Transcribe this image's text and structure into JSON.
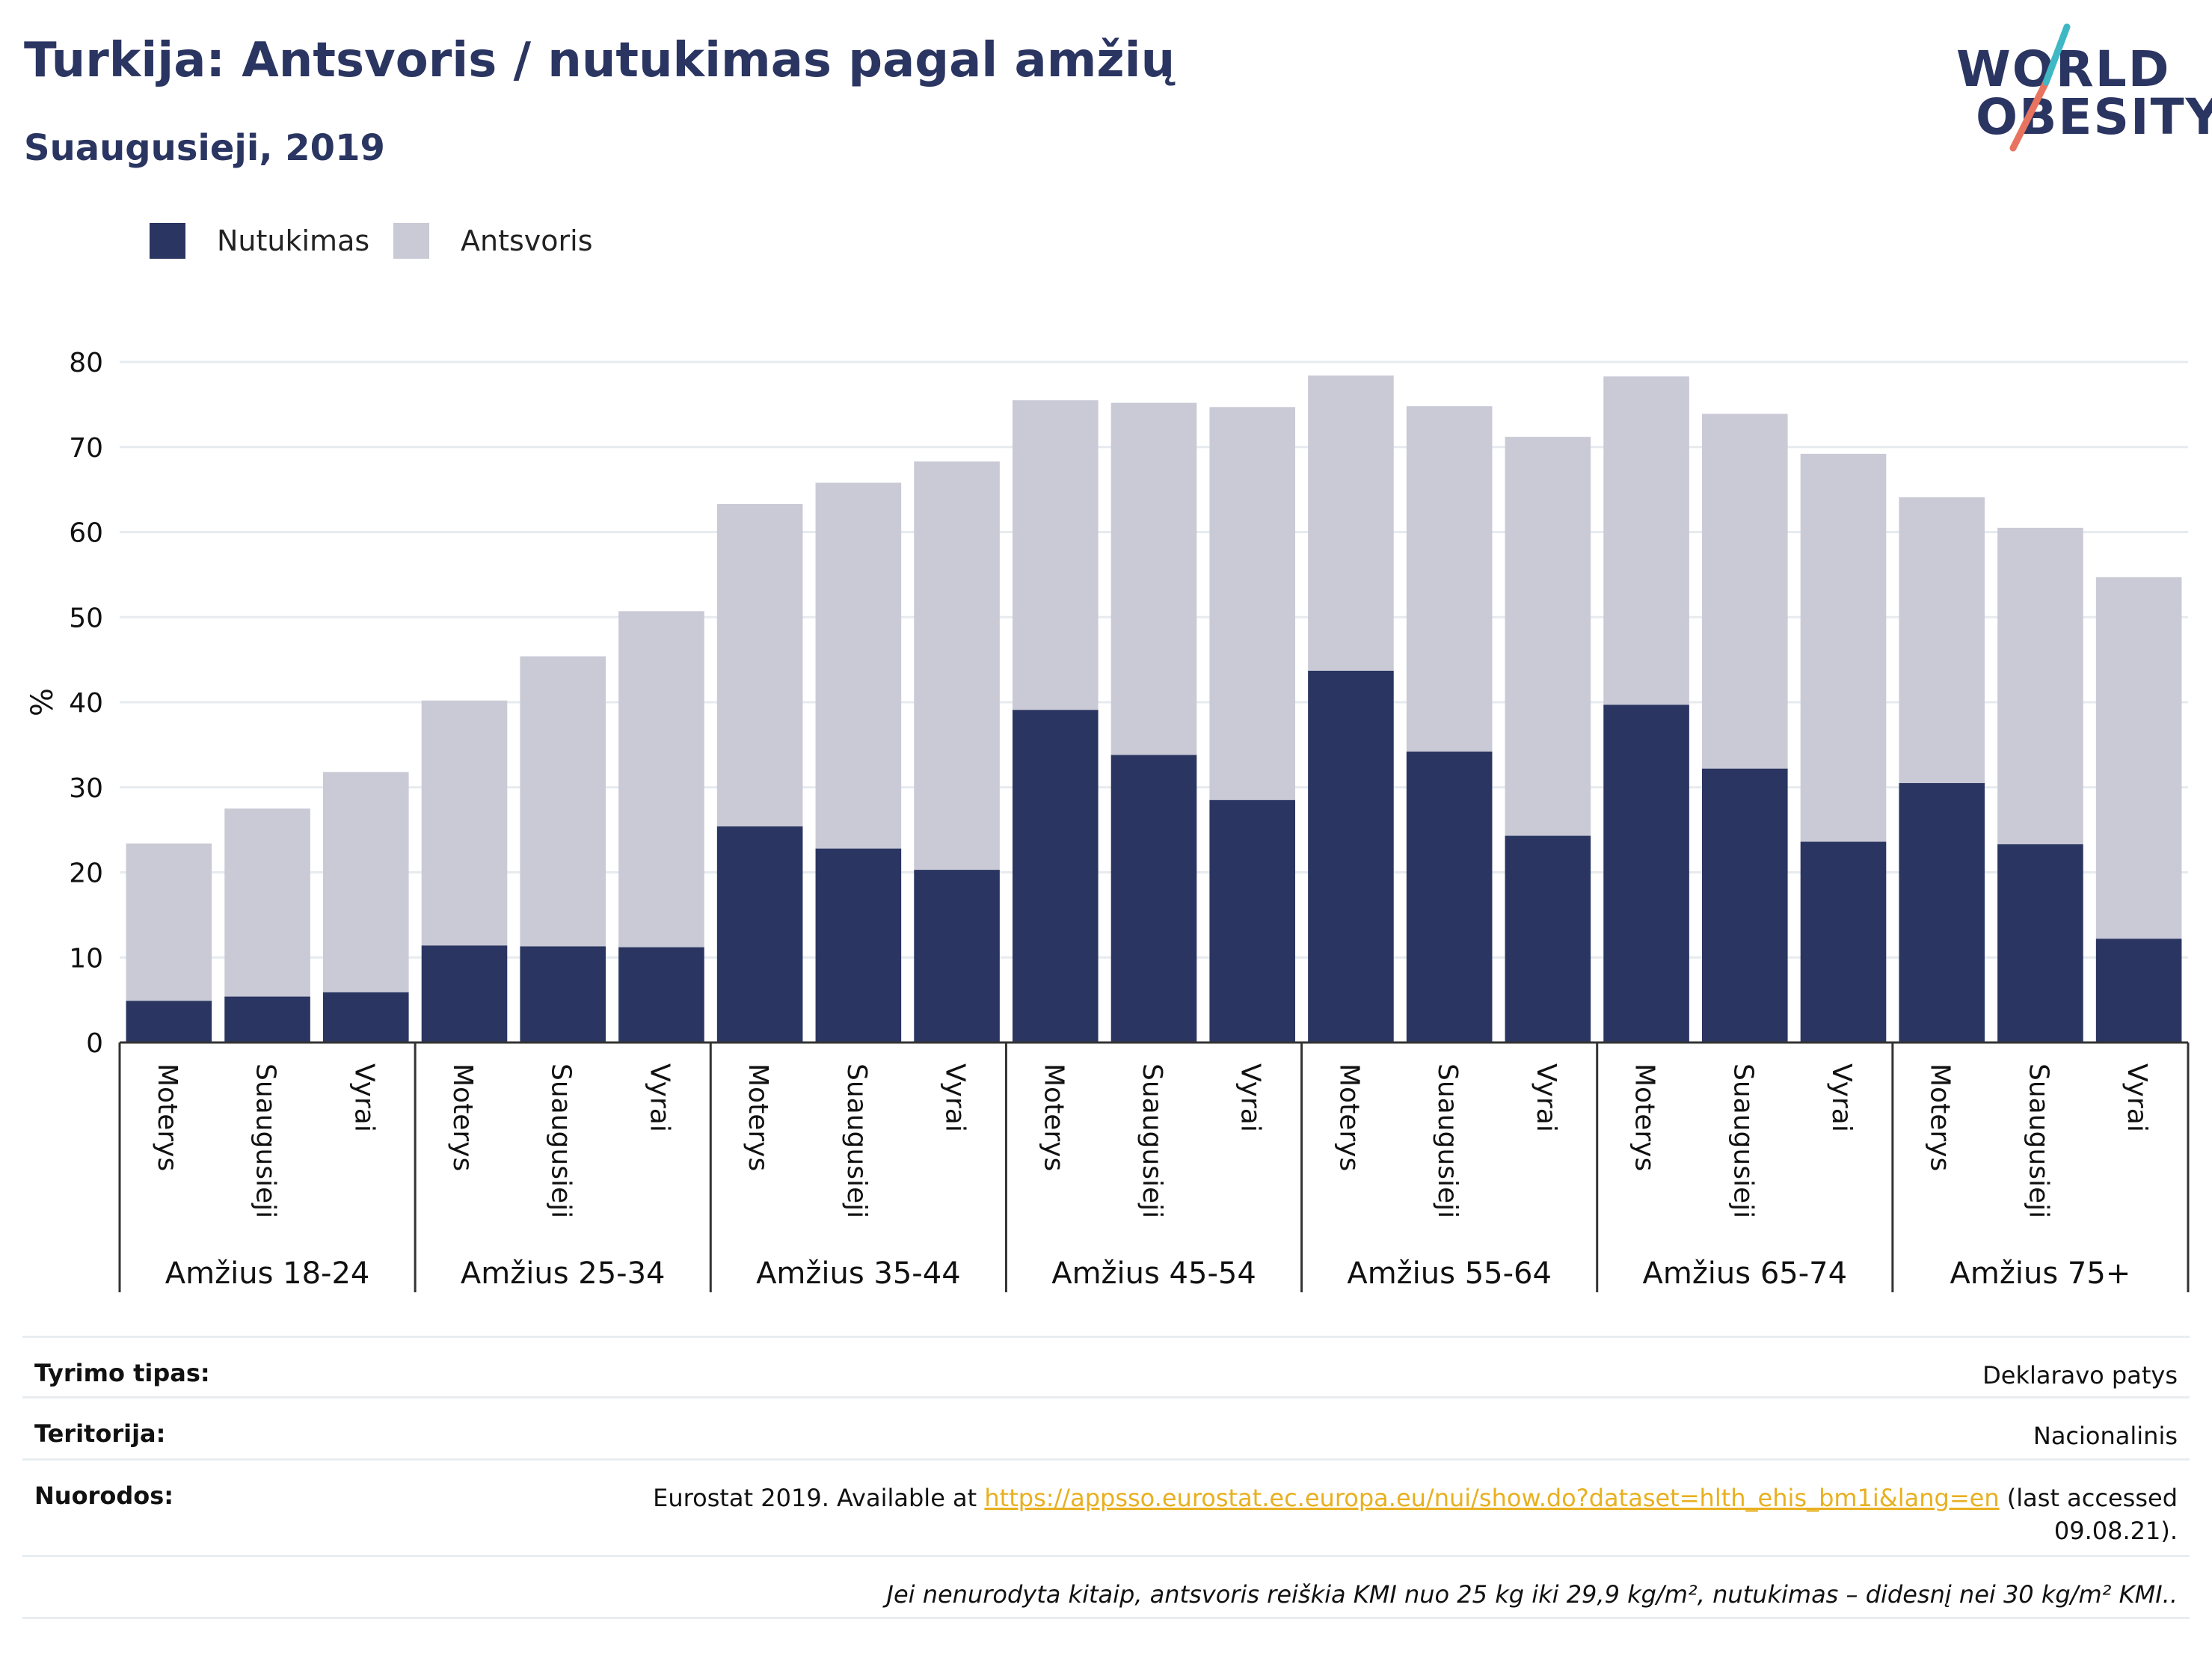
{
  "header": {
    "title": "Turkija: Antsvoris / nutukimas pagal amžių",
    "subtitle": "Suaugusieji, 2019"
  },
  "logo": {
    "line1": "WORLD",
    "line2": "OBESITY",
    "colors": {
      "navy": "#2a3561",
      "teal": "#3fb8c4",
      "coral": "#e8735f"
    }
  },
  "legend": [
    {
      "label": "Nutukimas",
      "color": "#2a3561"
    },
    {
      "label": "Antsvoris",
      "color": "#c9cad6"
    }
  ],
  "chart_data": {
    "type": "bar",
    "stacked": true,
    "ylabel": "%",
    "ylim": [
      0,
      80
    ],
    "yticks": [
      0,
      10,
      20,
      30,
      40,
      50,
      60,
      70,
      80
    ],
    "grid": true,
    "legend_position": "top-left",
    "groups": [
      "Amžius 18-24",
      "Amžius 25-34",
      "Amžius 35-44",
      "Amžius 45-54",
      "Amžius 55-64",
      "Amžius 65-74",
      "Amžius 75+"
    ],
    "subcategories": [
      "Moterys",
      "Suaugusieji",
      "Vyrai"
    ],
    "series": [
      {
        "name": "Nutukimas",
        "color": "#2a3561",
        "values": [
          4.9,
          5.4,
          5.9,
          11.4,
          11.3,
          11.2,
          25.4,
          22.8,
          20.3,
          39.1,
          33.8,
          28.5,
          43.7,
          34.2,
          24.3,
          39.7,
          32.2,
          23.6,
          30.5,
          23.3,
          12.2
        ]
      },
      {
        "name": "Antsvoris",
        "color": "#c9cad6",
        "values": [
          18.5,
          22.1,
          25.9,
          28.8,
          34.1,
          39.5,
          37.9,
          43.0,
          48.0,
          36.4,
          41.4,
          46.2,
          34.7,
          40.6,
          46.9,
          38.6,
          41.7,
          45.6,
          33.6,
          37.2,
          42.5
        ]
      }
    ]
  },
  "info": {
    "survey_type": {
      "label": "Tyrimo tipas:",
      "value": "Deklaravo patys"
    },
    "territory": {
      "label": "Teritorija:",
      "value": "Nacionalinis"
    },
    "references": {
      "label": "Nuorodos:",
      "prefix": "Eurostat 2019. Available at ",
      "link": "https://appsso.eurostat.ec.europa.eu/nui/show.do?dataset=hlth_ehis_bm1i&lang=en",
      "suffix_line1": " (last accessed",
      "suffix_line2": "09.08.21)."
    },
    "footnote": "Jei nenurodyta kitaip, antsvoris reiškia KMI nuo 25 kg iki 29,9 kg/m², nutukimas – didesnį nei 30 kg/m² KMI.."
  }
}
